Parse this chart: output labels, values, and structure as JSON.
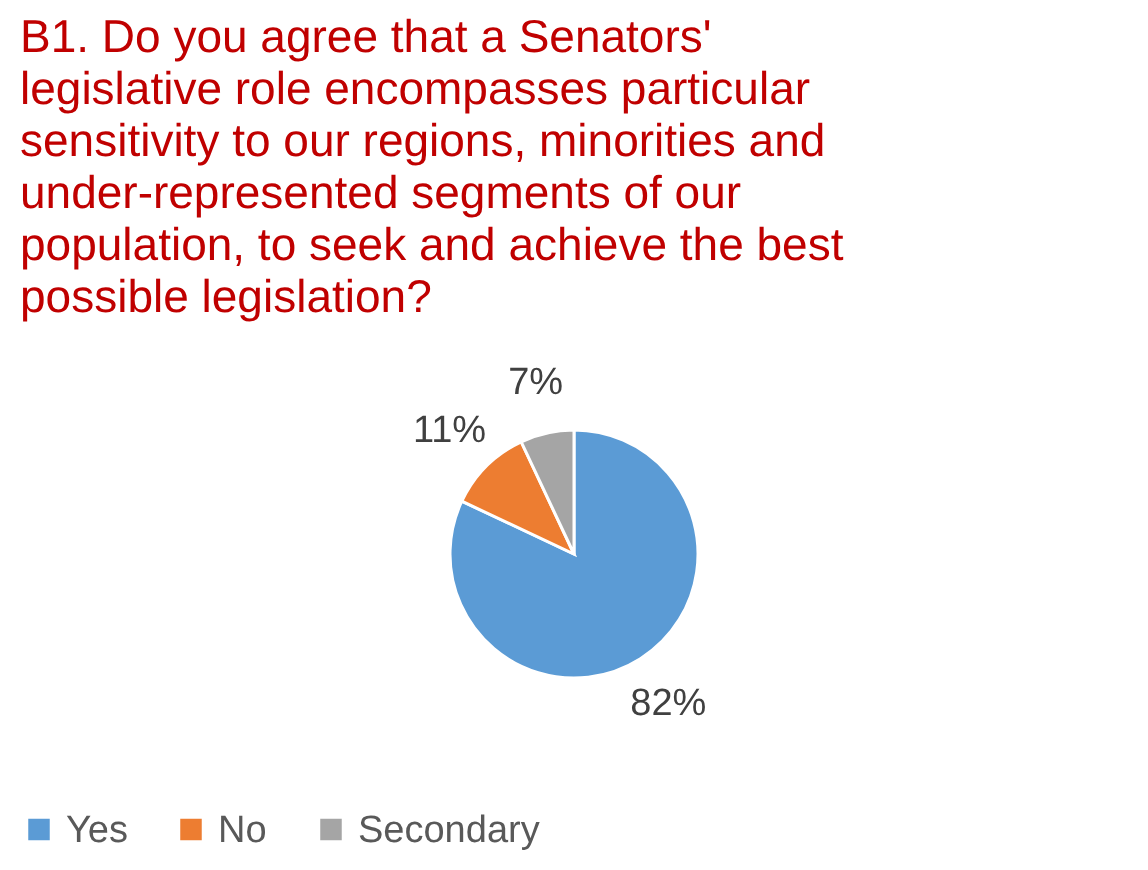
{
  "chart_data": {
    "type": "pie",
    "title": "B1. Do you agree that a Senators' legislative role encompasses particular sensitivity to our regions, minorities and under-represented segments of our population, to seek and achieve the best possible legislation?",
    "categories": [
      "Yes",
      "No",
      "Secondary"
    ],
    "values": [
      82,
      11,
      7
    ],
    "value_labels": [
      "82%",
      "11%",
      "7%"
    ],
    "colors": [
      "#5b9bd5",
      "#ed7d31",
      "#a5a5a5"
    ],
    "legend": "bottom"
  }
}
